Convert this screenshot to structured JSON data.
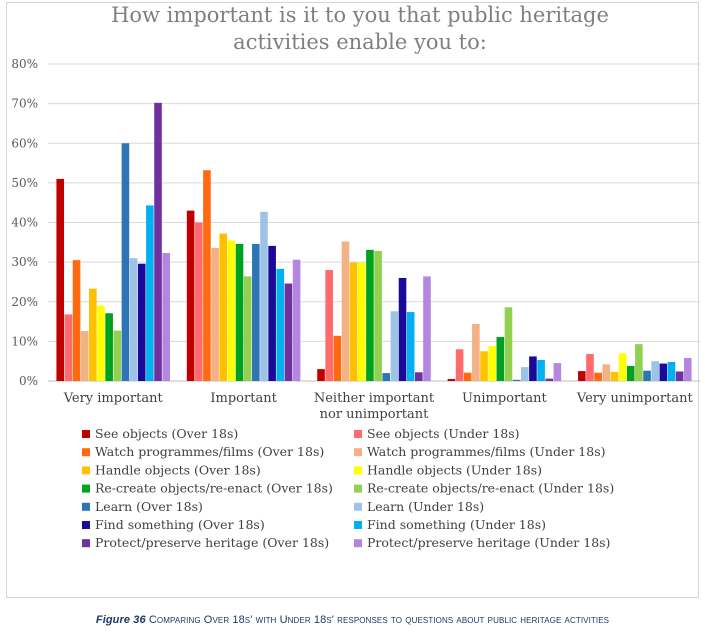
{
  "chart_data": {
    "type": "bar",
    "title_lines": [
      "How important is it to you that public heritage",
      "activities enable you to:"
    ],
    "categories": [
      "Very important",
      "Important",
      "Neither important|nor unimportant",
      "Unimportant",
      "Very unimportant"
    ],
    "ylim": [
      0,
      80
    ],
    "yticks": [
      "0%",
      "10%",
      "20%",
      "30%",
      "40%",
      "50%",
      "60%",
      "70%",
      "80%"
    ],
    "grid": true,
    "legend_position": "bottom",
    "series": [
      {
        "name": "See objects (Over 18s)",
        "color": "#c00000",
        "values": [
          51,
          43,
          3,
          0.5,
          2.5
        ]
      },
      {
        "name": "See objects (Under 18s)",
        "color": "#ff6b6b",
        "values": [
          16.8,
          40,
          28,
          8,
          6.8
        ]
      },
      {
        "name": "Watch programmes/films (Over 18s)",
        "color": "#ff6a10",
        "values": [
          30.5,
          53.2,
          11.4,
          2.1,
          2.1
        ]
      },
      {
        "name": "Watch programmes/films (Under 18s)",
        "color": "#f4b183",
        "values": [
          12.6,
          33.6,
          35.2,
          14.4,
          4.2
        ]
      },
      {
        "name": "Handle objects (Over 18s)",
        "color": "#ffc000",
        "values": [
          23.3,
          37.2,
          29.9,
          7.5,
          2.3
        ]
      },
      {
        "name": "Handle objects (Under 18s)",
        "color": "#ffff00",
        "values": [
          19,
          35.5,
          29.9,
          8.8,
          7
        ]
      },
      {
        "name": "Re-create objects/re-enact (Over 18s)",
        "color": "#00a020",
        "values": [
          17.1,
          34.6,
          33.1,
          11.1,
          3.8
        ]
      },
      {
        "name": "Re-create objects/re-enact (Under 18s)",
        "color": "#92d050",
        "values": [
          12.7,
          26.4,
          32.8,
          18.6,
          9.3
        ]
      },
      {
        "name": "Learn (Over 18s)",
        "color": "#2e75b6",
        "values": [
          60,
          34.6,
          2,
          0.3,
          2.6
        ]
      },
      {
        "name": "Learn (Under 18s)",
        "color": "#9dc3e6",
        "values": [
          31,
          42.7,
          17.6,
          3.5,
          5
        ]
      },
      {
        "name": "Find something (Over 18s)",
        "color": "#1a0a99",
        "values": [
          29.6,
          34.1,
          26,
          6.2,
          4.4
        ]
      },
      {
        "name": "Find something (Under 18s)",
        "color": "#00b0f0",
        "values": [
          44.3,
          28.3,
          17.4,
          5.3,
          4.8
        ]
      },
      {
        "name": "Protect/preserve heritage (Over 18s)",
        "color": "#7030a0",
        "values": [
          70.2,
          24.6,
          2.2,
          0.6,
          2.4
        ]
      },
      {
        "name": "Protect/preserve heritage (Under 18s)",
        "color": "#b486e0",
        "values": [
          32.3,
          30.6,
          26.4,
          4.5,
          5.8
        ]
      }
    ]
  },
  "caption": {
    "figure_label": "Figure 36",
    "text": "Comparing Over 18s' with Under 18s' responses to questions about public heritage activities"
  }
}
